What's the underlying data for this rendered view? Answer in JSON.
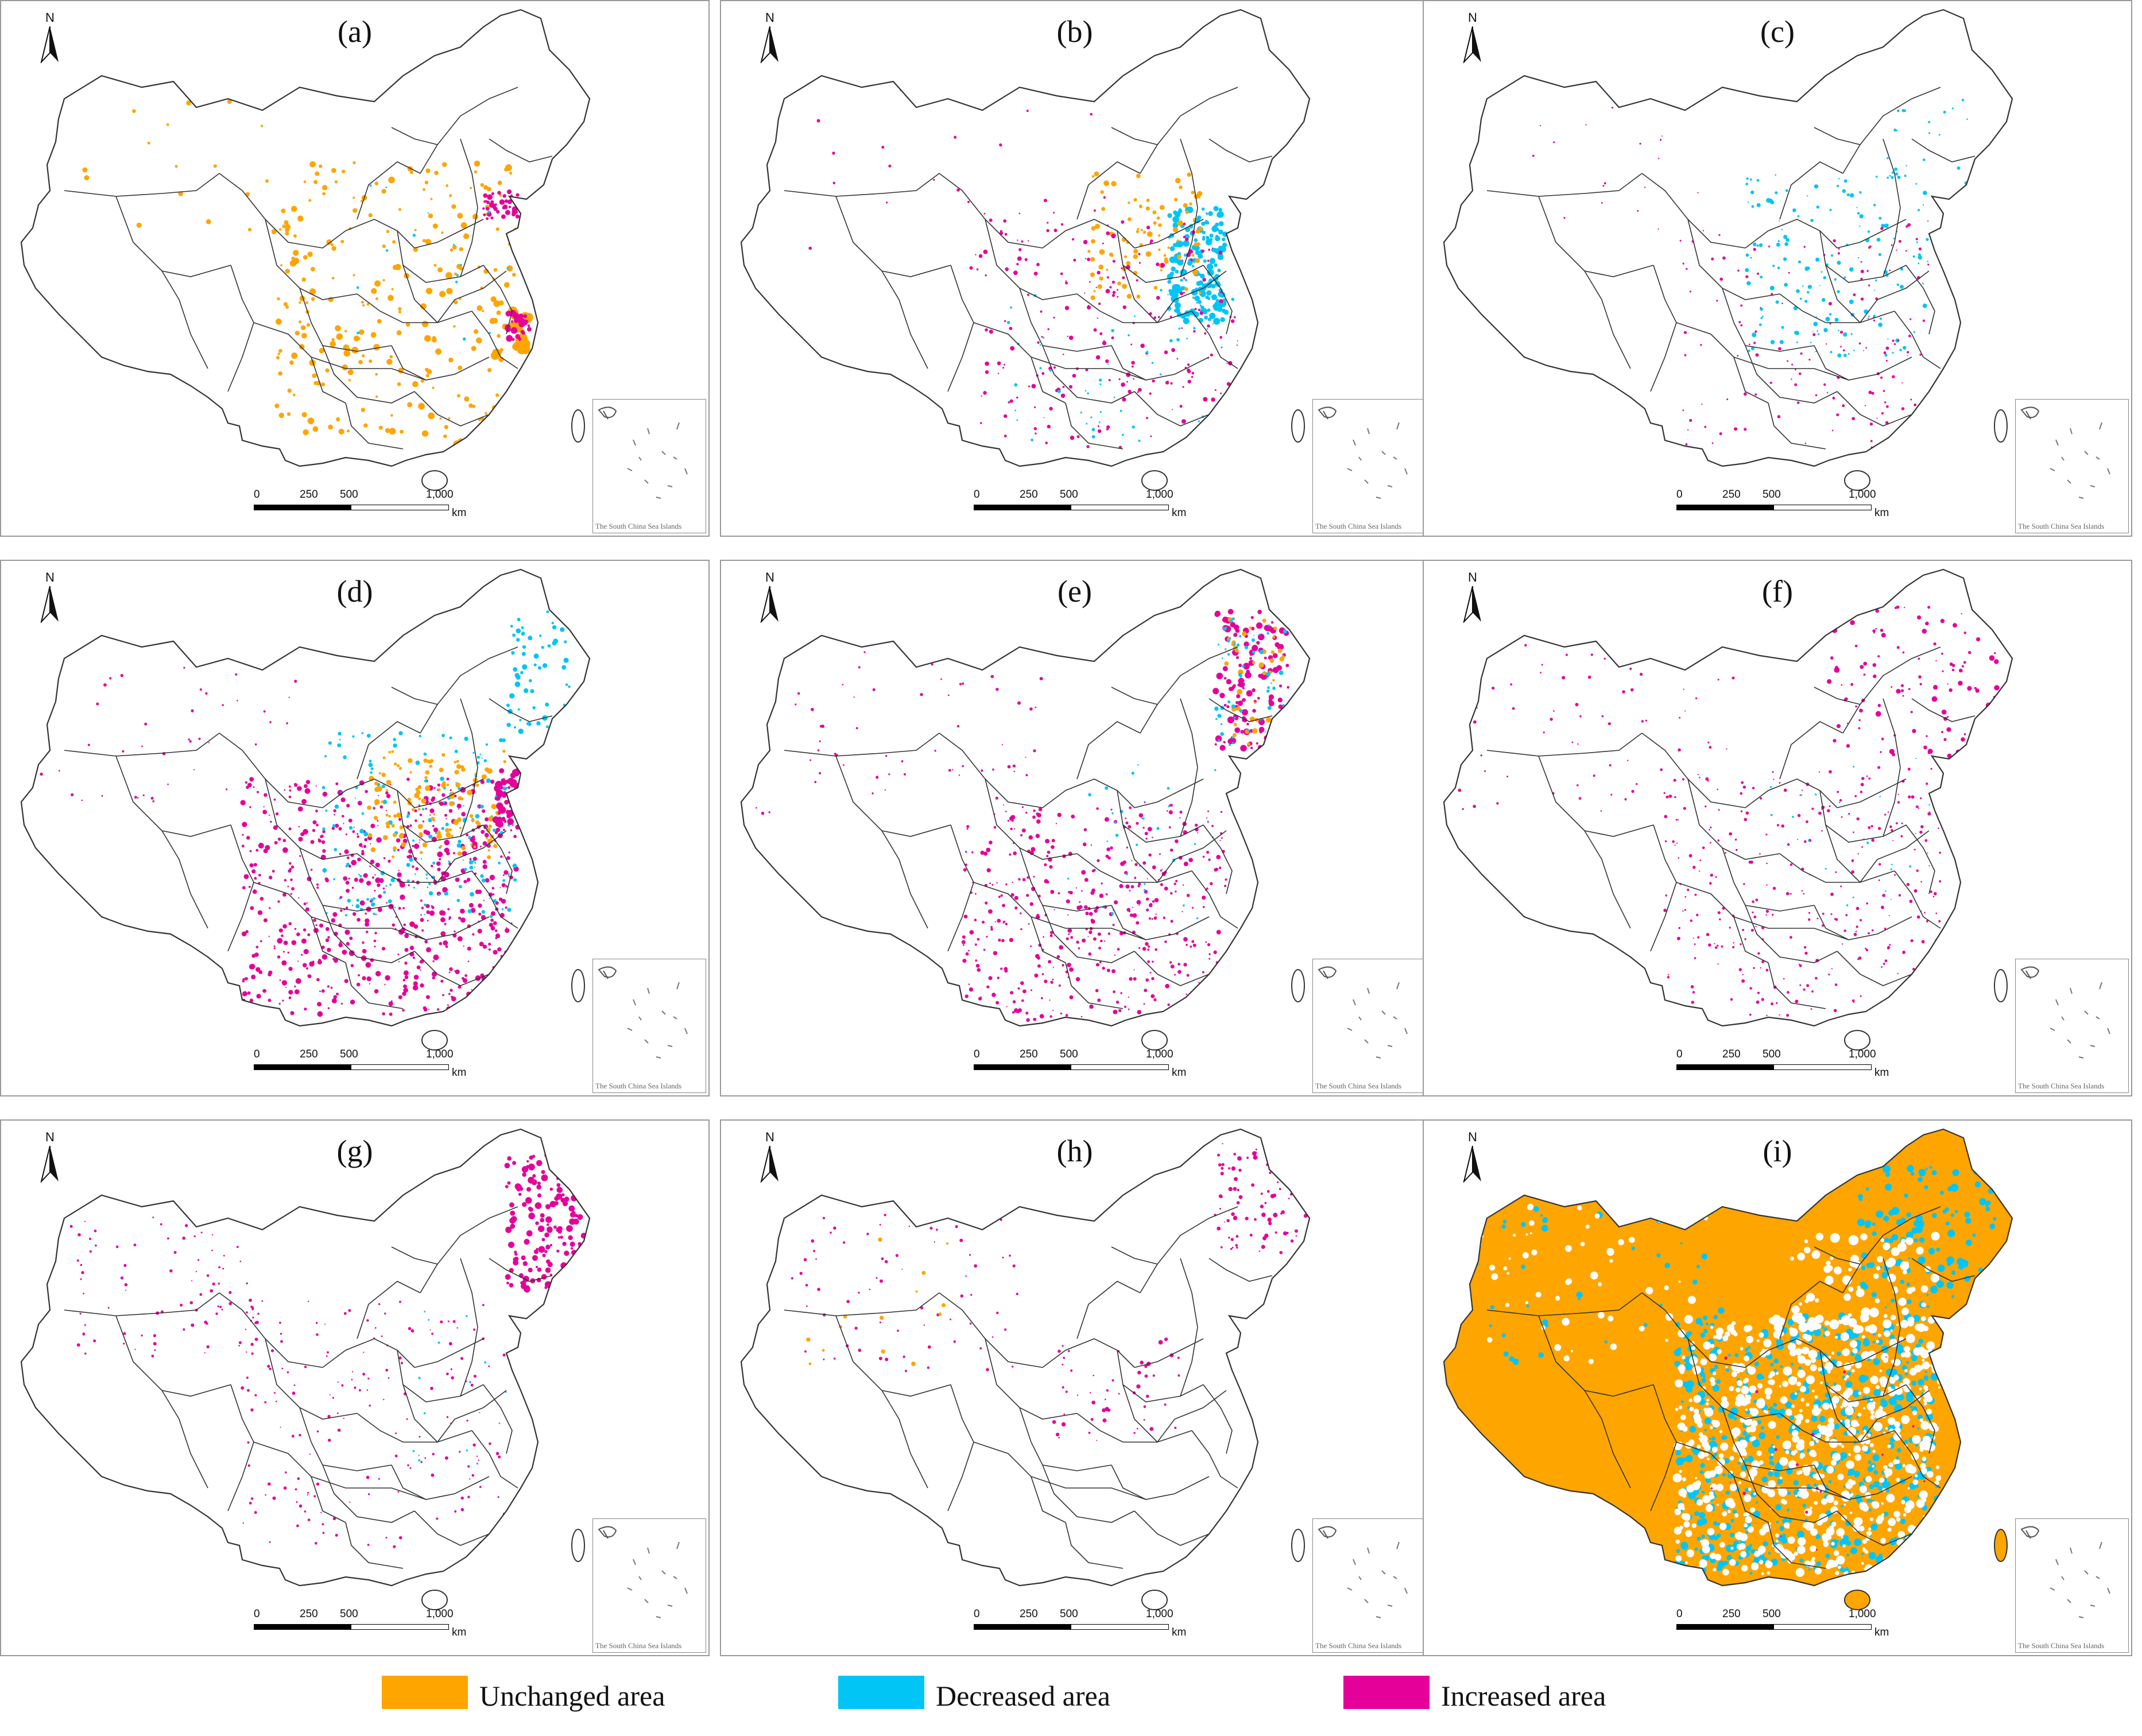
{
  "panels": [
    {
      "label": "(a)",
      "pattern": "unchanged_scatter"
    },
    {
      "label": "(b)",
      "pattern": "mixed_east"
    },
    {
      "label": "(c)",
      "pattern": "sparse_mixed"
    },
    {
      "label": "(d)",
      "pattern": "dense_increase_south"
    },
    {
      "label": "(e)",
      "pattern": "increase_south_northeast"
    },
    {
      "label": "(f)",
      "pattern": "light_increase"
    },
    {
      "label": "(g)",
      "pattern": "northeast_increase"
    },
    {
      "label": "(h)",
      "pattern": "very_sparse"
    },
    {
      "label": "(i)",
      "pattern": "mostly_unchanged"
    }
  ],
  "map_furniture": {
    "north_label": "N",
    "scale_ticks": [
      "0",
      "250",
      "500",
      "1,000"
    ],
    "scale_unit": "km",
    "inset_caption": "The South China Sea Islands"
  },
  "legend": [
    {
      "label": "Unchanged area",
      "color": "#FFA500"
    },
    {
      "label": "Decreased area",
      "color": "#00C5F5"
    },
    {
      "label": "Increased area",
      "color": "#E5009A"
    }
  ],
  "colors": {
    "unchanged": "#FFA500",
    "decreased": "#00C5F5",
    "increased": "#E5009A",
    "boundary": "#333333"
  }
}
